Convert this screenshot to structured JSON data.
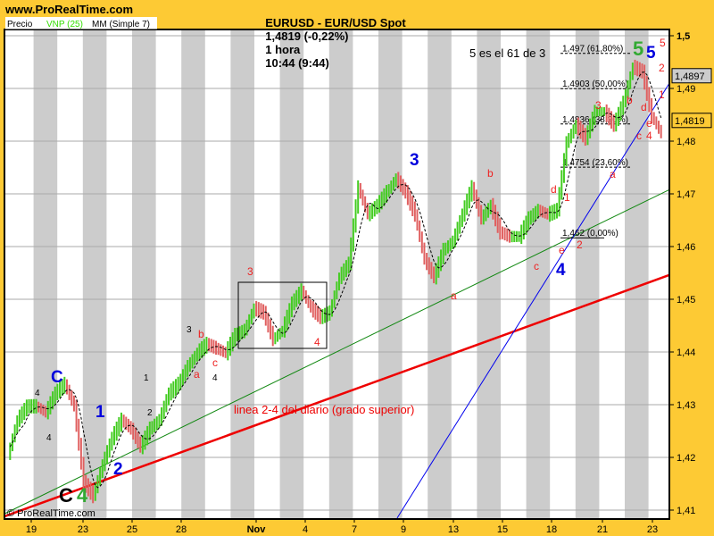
{
  "header": {
    "site": "www.ProRealTime.com",
    "title": "EURUSD - EUR/USD Spot",
    "last": "1,4819 (-0,22%)",
    "timeframe": "1 hora",
    "time": "10:44 (9:44)"
  },
  "legend": {
    "price": "Precio",
    "vnp": "VNP (25)",
    "ma": "MM (Simple 7)"
  },
  "watermark": "© ProRealTime.com",
  "colors": {
    "background": "#fdca34",
    "up": "#44cc22",
    "down": "#e06060",
    "vnp": "#33dd00",
    "stripe": "#cccccc",
    "trend_red": "#ee0000",
    "trend_green": "#118811",
    "trend_blue": "#0000ee",
    "last_box": "#fdca34",
    "level_box": "#cccccc"
  },
  "chart_data": {
    "type": "line",
    "title": "EURUSD - EUR/USD Spot",
    "ylim": [
      1.405,
      1.505
    ],
    "grid": true,
    "y_ticks": [
      "1,5",
      "1,49",
      "1,48",
      "1,47",
      "1,46",
      "1,45",
      "1,44",
      "1,43",
      "1,42",
      "1,41"
    ],
    "y_tick_values": [
      1.5,
      1.49,
      1.48,
      1.47,
      1.46,
      1.45,
      1.44,
      1.43,
      1.42,
      1.41
    ],
    "x_ticks": [
      "19",
      "23",
      "25",
      "28",
      "Nov",
      "4",
      "7",
      "9",
      "13",
      "15",
      "18",
      "21",
      "23"
    ],
    "price_path": [
      1.4203,
      1.4271,
      1.4297,
      1.4297,
      1.4285,
      1.4322,
      1.4339,
      1.4297,
      1.4153,
      1.4127,
      1.4186,
      1.4237,
      1.4271,
      1.4254,
      1.422,
      1.4254,
      1.4271,
      1.4322,
      1.4339,
      1.4373,
      1.4398,
      1.4415,
      1.4407,
      1.4398,
      1.4432,
      1.4441,
      1.4483,
      1.4475,
      1.4424,
      1.4441,
      1.4492,
      1.4517,
      1.4483,
      1.4466,
      1.4475,
      1.4542,
      1.4568,
      1.4712,
      1.4661,
      1.4678,
      1.4703,
      1.4729,
      1.4703,
      1.4661,
      1.4576,
      1.4542,
      1.4593,
      1.461,
      1.4661,
      1.4712,
      1.4653,
      1.4678,
      1.4627,
      1.4619,
      1.4619,
      1.4653,
      1.4669,
      1.4661,
      1.4669,
      1.4797,
      1.4831,
      1.4805,
      1.4856,
      1.4856,
      1.4831,
      1.4873,
      1.4941,
      1.4932,
      1.4847,
      1.4814
    ],
    "last_price_label": "1,4819",
    "level_label": "1,4897",
    "fib_levels": [
      {
        "price": 1.497,
        "label": "1,497 (61,80%)"
      },
      {
        "price": 1.4903,
        "label": "1,4903 (50,00%)"
      },
      {
        "price": 1.4836,
        "label": "1,4836 (38,20%)"
      },
      {
        "price": 1.4754,
        "label": "1,4754 (23,60%)"
      },
      {
        "price": 1.462,
        "label": "1,462 (0,00%)"
      }
    ],
    "trend_lines": [
      {
        "name": "linea 2-4 del diario (grado superior)",
        "color": "#ee0000",
        "from": 1.4088,
        "to": 1.4546
      },
      {
        "color": "#118811",
        "from": 1.4093,
        "to": 1.4708
      },
      {
        "color": "#0000ee",
        "from": 1.4085,
        "to": 1.491
      }
    ],
    "annotations": {
      "note": "5 es el 61 de 3",
      "trend_label": "linea 2-4 del diario (grado superior)"
    }
  },
  "waves": {
    "blue": [
      "C",
      "1",
      "2",
      "3",
      "4",
      "5"
    ],
    "green": [
      "4",
      "5"
    ],
    "black_big": "C",
    "black_small": [
      "3",
      "4",
      "1",
      "2",
      "3",
      "4",
      "2"
    ],
    "red": [
      "3",
      "4",
      "a",
      "b",
      "c",
      "a",
      "b",
      "c",
      "d",
      "e",
      "1",
      "2",
      "3",
      "a",
      "b",
      "c",
      "d",
      "e",
      "4",
      "5",
      "2",
      "1"
    ]
  }
}
